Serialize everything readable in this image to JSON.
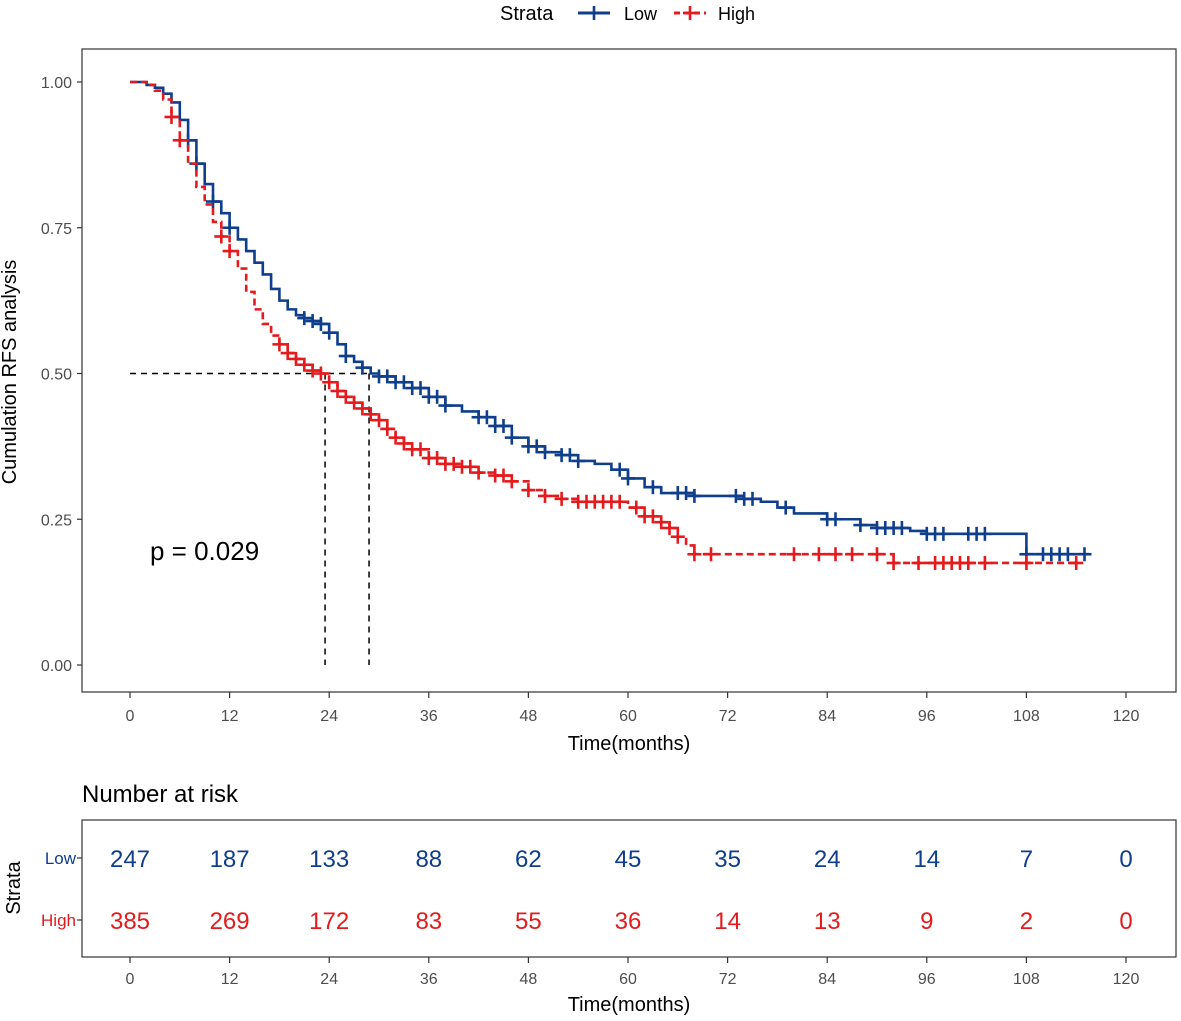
{
  "colors": {
    "low": "#0E3E8C",
    "high": "#E41A1C",
    "axis": "#333333",
    "tick_text": "#4D4D4D",
    "border": "#333333"
  },
  "legend": {
    "title": "Strata",
    "entries": [
      "Low",
      "High"
    ]
  },
  "chart_data": {
    "type": "line",
    "subtype": "kaplan-meier",
    "ylabel": "Cumulation RFS analysis",
    "xlabel": "Time(months)",
    "xlim": [
      0,
      120
    ],
    "ylim": [
      0,
      1
    ],
    "x_ticks": [
      0,
      12,
      24,
      36,
      48,
      60,
      72,
      84,
      96,
      108,
      120
    ],
    "y_ticks": [
      0.0,
      0.25,
      0.5,
      0.75,
      1.0
    ],
    "y_tick_labels": [
      "0.00",
      "0.25",
      "0.50",
      "0.75",
      "1.00"
    ],
    "annotation": "p = 0.029",
    "median_line": {
      "y": 0.5,
      "x_values": [
        23.5,
        28.8
      ]
    },
    "series": [
      {
        "name": "Low",
        "line_style": "solid",
        "points": [
          [
            0,
            1.0
          ],
          [
            1.5,
            1.0
          ],
          [
            2,
            0.995
          ],
          [
            3,
            0.99
          ],
          [
            4,
            0.98
          ],
          [
            5,
            0.965
          ],
          [
            6,
            0.935
          ],
          [
            7,
            0.9
          ],
          [
            8,
            0.86
          ],
          [
            9,
            0.825
          ],
          [
            10,
            0.795
          ],
          [
            11,
            0.775
          ],
          [
            12,
            0.75
          ],
          [
            13,
            0.73
          ],
          [
            14,
            0.71
          ],
          [
            15,
            0.69
          ],
          [
            16,
            0.67
          ],
          [
            17,
            0.645
          ],
          [
            18,
            0.625
          ],
          [
            19,
            0.61
          ],
          [
            20,
            0.6
          ],
          [
            21,
            0.595
          ],
          [
            22,
            0.59
          ],
          [
            23,
            0.585
          ],
          [
            24,
            0.57
          ],
          [
            25,
            0.55
          ],
          [
            26,
            0.53
          ],
          [
            27,
            0.52
          ],
          [
            28,
            0.51
          ],
          [
            29,
            0.5
          ],
          [
            30,
            0.495
          ],
          [
            32,
            0.485
          ],
          [
            34,
            0.475
          ],
          [
            36,
            0.46
          ],
          [
            38,
            0.445
          ],
          [
            40,
            0.435
          ],
          [
            42,
            0.425
          ],
          [
            44,
            0.41
          ],
          [
            46,
            0.39
          ],
          [
            48,
            0.375
          ],
          [
            50,
            0.365
          ],
          [
            52,
            0.36
          ],
          [
            54,
            0.35
          ],
          [
            56,
            0.345
          ],
          [
            58,
            0.335
          ],
          [
            60,
            0.32
          ],
          [
            62,
            0.305
          ],
          [
            64,
            0.295
          ],
          [
            66,
            0.295
          ],
          [
            68,
            0.29
          ],
          [
            70,
            0.29
          ],
          [
            72,
            0.29
          ],
          [
            74,
            0.285
          ],
          [
            76,
            0.28
          ],
          [
            78,
            0.27
          ],
          [
            80,
            0.26
          ],
          [
            82,
            0.26
          ],
          [
            84,
            0.25
          ],
          [
            86,
            0.25
          ],
          [
            88,
            0.24
          ],
          [
            90,
            0.235
          ],
          [
            92,
            0.235
          ],
          [
            94,
            0.23
          ],
          [
            96,
            0.225
          ],
          [
            100,
            0.225
          ],
          [
            104,
            0.225
          ],
          [
            108,
            0.225
          ],
          [
            108,
            0.19
          ],
          [
            112,
            0.19
          ],
          [
            115.5,
            0.19
          ]
        ],
        "censor_x": [
          7,
          8,
          10,
          12,
          21,
          22,
          23,
          24,
          26,
          28,
          30,
          31,
          32,
          33,
          34,
          35,
          36,
          37,
          38,
          42,
          43,
          44,
          45,
          46,
          48,
          49,
          50,
          52,
          53,
          54,
          59,
          60,
          63,
          66,
          67,
          68,
          73,
          74,
          75,
          79,
          84,
          85,
          88,
          90,
          91,
          92,
          93,
          96,
          97,
          98,
          101,
          102,
          103,
          108,
          110,
          111,
          112,
          113,
          115
        ]
      },
      {
        "name": "High",
        "line_style": "dashed",
        "points": [
          [
            0,
            1.0
          ],
          [
            1,
            1.0
          ],
          [
            2,
            0.995
          ],
          [
            3,
            0.985
          ],
          [
            4,
            0.97
          ],
          [
            5,
            0.94
          ],
          [
            6,
            0.9
          ],
          [
            7,
            0.86
          ],
          [
            8,
            0.82
          ],
          [
            9,
            0.79
          ],
          [
            10,
            0.76
          ],
          [
            11,
            0.735
          ],
          [
            12,
            0.71
          ],
          [
            13,
            0.68
          ],
          [
            14,
            0.64
          ],
          [
            15,
            0.61
          ],
          [
            16,
            0.585
          ],
          [
            17,
            0.565
          ],
          [
            18,
            0.55
          ],
          [
            19,
            0.535
          ],
          [
            20,
            0.525
          ],
          [
            21,
            0.515
          ],
          [
            22,
            0.505
          ],
          [
            23,
            0.5
          ],
          [
            24,
            0.485
          ],
          [
            25,
            0.47
          ],
          [
            26,
            0.46
          ],
          [
            27,
            0.45
          ],
          [
            28,
            0.44
          ],
          [
            29,
            0.43
          ],
          [
            30,
            0.42
          ],
          [
            31,
            0.405
          ],
          [
            32,
            0.39
          ],
          [
            33,
            0.38
          ],
          [
            34,
            0.37
          ],
          [
            36,
            0.355
          ],
          [
            38,
            0.345
          ],
          [
            40,
            0.34
          ],
          [
            42,
            0.33
          ],
          [
            44,
            0.325
          ],
          [
            46,
            0.315
          ],
          [
            48,
            0.3
          ],
          [
            50,
            0.29
          ],
          [
            52,
            0.285
          ],
          [
            54,
            0.28
          ],
          [
            56,
            0.28
          ],
          [
            58,
            0.28
          ],
          [
            60,
            0.27
          ],
          [
            62,
            0.255
          ],
          [
            64,
            0.245
          ],
          [
            65,
            0.235
          ],
          [
            66,
            0.22
          ],
          [
            67,
            0.205
          ],
          [
            68,
            0.19
          ],
          [
            72,
            0.19
          ],
          [
            80,
            0.19
          ],
          [
            90,
            0.19
          ],
          [
            92,
            0.175
          ],
          [
            96,
            0.175
          ],
          [
            104,
            0.175
          ],
          [
            108,
            0.175
          ],
          [
            114,
            0.175
          ]
        ],
        "censor_x": [
          5,
          6,
          11,
          12,
          18,
          19,
          20,
          21,
          22,
          23,
          24,
          25,
          26,
          27,
          28,
          29,
          30,
          31,
          32,
          33,
          34,
          35,
          36,
          37,
          38,
          39,
          40,
          41,
          42,
          44,
          45,
          46,
          48,
          50,
          52,
          54,
          55,
          56,
          57,
          58,
          59,
          61,
          62,
          63,
          64,
          65,
          66,
          68,
          70,
          80,
          83,
          85,
          87,
          90,
          92,
          95,
          97,
          98,
          99,
          100,
          101,
          103,
          108,
          114
        ]
      }
    ],
    "risk_table": {
      "title": "Number at risk",
      "y_title": "Strata",
      "rows": [
        {
          "name": "Low",
          "values": [
            "247",
            "187",
            "133",
            "88",
            "62",
            "45",
            "35",
            "24",
            "14",
            "7",
            "0"
          ]
        },
        {
          "name": "High",
          "values": [
            "385",
            "269",
            "172",
            "83",
            "55",
            "36",
            "14",
            "13",
            "9",
            "2",
            "0"
          ]
        }
      ],
      "x_ticks": [
        "0",
        "12",
        "24",
        "36",
        "48",
        "60",
        "72",
        "84",
        "96",
        "108",
        "120"
      ],
      "xlabel": "Time(months)"
    }
  }
}
